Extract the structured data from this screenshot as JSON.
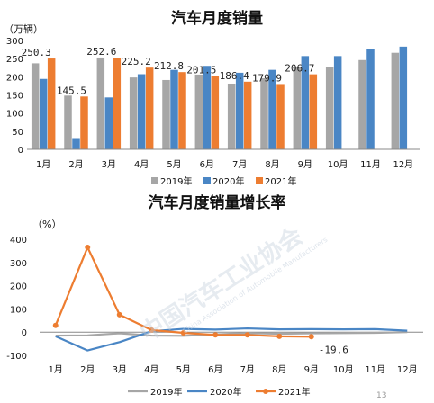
{
  "colors": {
    "s2019": "#a6a6a6",
    "s2020": "#4a86c5",
    "s2021": "#ed7d31",
    "neg_label": "#e02020"
  },
  "watermark": {
    "text": "中国汽车工业协会",
    "sub": "China Association of Automobile Manufacturers"
  },
  "page_number": "13",
  "chart_data": [
    {
      "type": "bar",
      "title": "汽车月度销量",
      "ylabel": "（万辆）",
      "ylim": [
        0,
        300
      ],
      "yticks": [
        "0",
        "50",
        "100",
        "150",
        "200",
        "250",
        "300"
      ],
      "categories": [
        "1月",
        "2月",
        "3月",
        "4月",
        "5月",
        "6月",
        "7月",
        "8月",
        "9月",
        "10月",
        "11月",
        "12月"
      ],
      "series": [
        {
          "name": "2019年",
          "color": "#a6a6a6",
          "values": [
            237,
            148,
            253,
            198,
            191,
            206,
            181,
            196,
            227,
            228,
            246,
            266
          ]
        },
        {
          "name": "2020年",
          "color": "#4a86c5",
          "values": [
            194,
            31,
            143,
            207,
            219,
            230,
            211,
            219,
            257,
            257,
            277,
            283
          ]
        },
        {
          "name": "2021年",
          "color": "#ed7d31",
          "values": [
            250.3,
            145.5,
            252.6,
            225.2,
            212.8,
            201.5,
            186.4,
            179.9,
            206.7,
            null,
            null,
            null
          ]
        }
      ],
      "data_labels": {
        "series": "2021年",
        "values": [
          "250.3",
          "145.5",
          "252.6",
          "225.2",
          "212.8",
          "201.5",
          "186.4",
          "179.9",
          "206.7"
        ]
      },
      "legend": {
        "placement": "bottom",
        "entries": [
          "2019年",
          "2020年",
          "2021年"
        ]
      },
      "grid": false
    },
    {
      "type": "line",
      "title": "汽车月度销量增长率",
      "ylabel": "（%）",
      "ylim": [
        -100,
        400
      ],
      "yticks": [
        "400",
        "300",
        "200",
        "100",
        "0",
        "-100"
      ],
      "categories": [
        "1月",
        "2月",
        "3月",
        "4月",
        "5月",
        "6月",
        "7月",
        "8月",
        "9月",
        "10月",
        "11月",
        "12月"
      ],
      "series": [
        {
          "name": "2019年",
          "color": "#a6a6a6",
          "values": [
            -15,
            -14,
            -5,
            -15,
            -16,
            -10,
            -4,
            -7,
            -5,
            -4,
            -3,
            0
          ]
        },
        {
          "name": "2020年",
          "color": "#4a86c5",
          "values": [
            -18,
            -79,
            -43,
            4,
            14,
            11,
            16,
            12,
            13,
            12,
            13,
            6
          ]
        },
        {
          "name": "2021年",
          "color": "#ed7d31",
          "values": [
            29,
            365,
            75,
            9,
            -3,
            -12,
            -12,
            -18,
            -19.6,
            null,
            null,
            null
          ]
        }
      ],
      "end_label": {
        "text": "-19.6",
        "index": 8
      },
      "legend": {
        "placement": "bottom",
        "entries": [
          "2019年",
          "2020年",
          "2021年"
        ]
      },
      "grid": false
    }
  ]
}
